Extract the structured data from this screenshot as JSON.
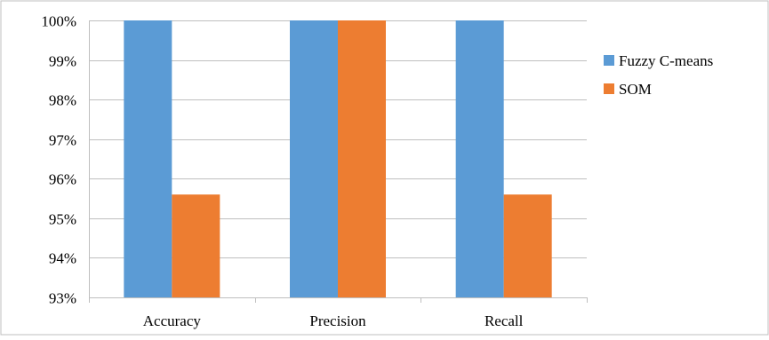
{
  "chart_data": {
    "type": "bar",
    "title": "",
    "xlabel": "",
    "ylabel": "",
    "categories": [
      "Accuracy",
      "Precision",
      "Recall"
    ],
    "series": [
      {
        "name": "Fuzzy C-means",
        "values": [
          100,
          100,
          100
        ],
        "color": "#5B9BD5"
      },
      {
        "name": "SOM",
        "values": [
          95.6,
          100,
          95.6
        ],
        "color": "#ED7D31"
      }
    ],
    "ylim": [
      93,
      100
    ],
    "yticks": [
      93,
      94,
      95,
      96,
      97,
      98,
      99,
      100
    ],
    "ytick_labels": [
      "93%",
      "94%",
      "95%",
      "96%",
      "97%",
      "98%",
      "99%",
      "100%"
    ],
    "grid": true,
    "legend": "right"
  }
}
